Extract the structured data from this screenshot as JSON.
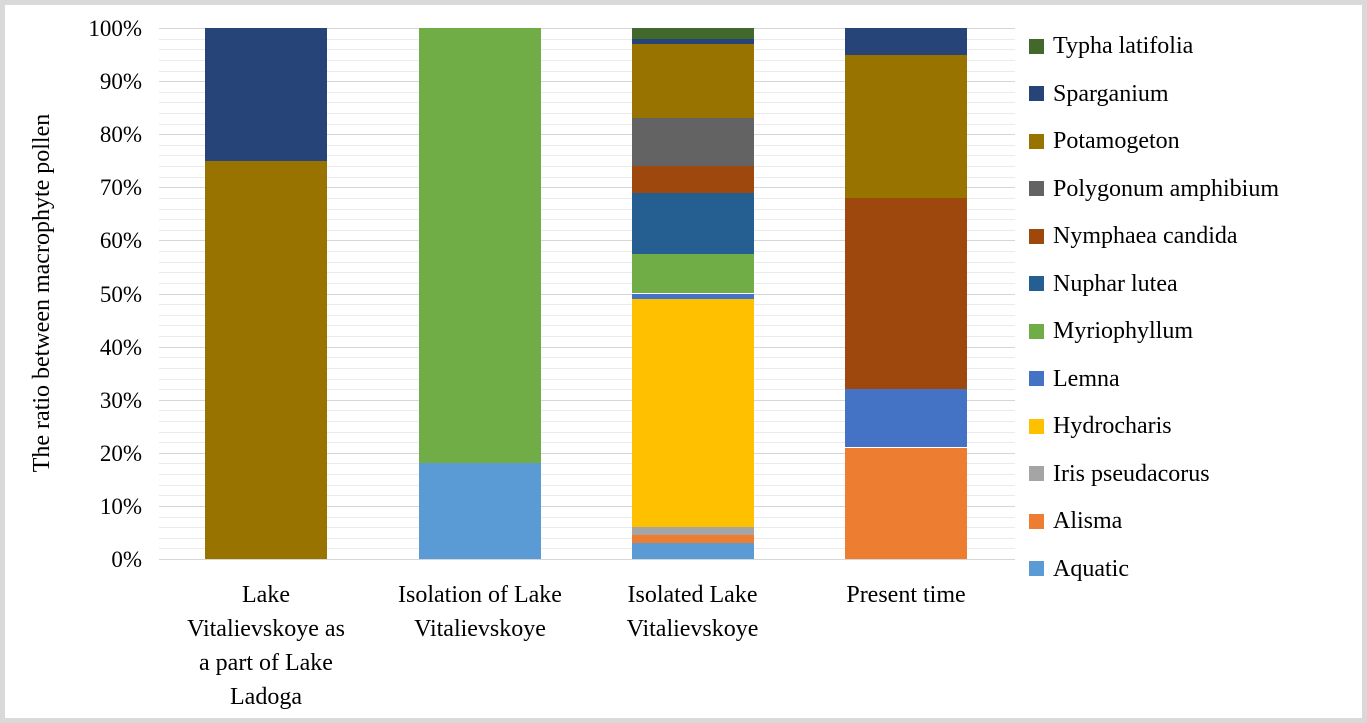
{
  "chart_data": {
    "type": "bar",
    "variant": "stacked-100-percent",
    "title": "",
    "xlabel": "",
    "ylabel": "The ratio between macrophyte pollen",
    "ylim": [
      0,
      100
    ],
    "ytick_step_major": 10,
    "ytick_step_minor": 2,
    "grid": "major and minor horizontal gridlines on",
    "legend_position": "right",
    "categories": [
      "Lake\nVitalievskoye as\na part of Lake\nLadoga",
      "Isolation of Lake\nVitalievskoye",
      "Isolated Lake\nVitalievskoye",
      "Present time"
    ],
    "yticks": [
      {
        "value": 0,
        "label": "0%"
      },
      {
        "value": 10,
        "label": "10%"
      },
      {
        "value": 20,
        "label": "20%"
      },
      {
        "value": 30,
        "label": "30%"
      },
      {
        "value": 40,
        "label": "40%"
      },
      {
        "value": 50,
        "label": "50%"
      },
      {
        "value": 60,
        "label": "60%"
      },
      {
        "value": 70,
        "label": "70%"
      },
      {
        "value": 80,
        "label": "80%"
      },
      {
        "value": 90,
        "label": "90%"
      },
      {
        "value": 100,
        "label": "100%"
      }
    ],
    "series": [
      {
        "name": "Aquatic",
        "color": "#5B9BD5",
        "values": [
          0,
          18,
          3,
          0
        ]
      },
      {
        "name": "Alisma",
        "color": "#ED7D31",
        "values": [
          0,
          0,
          1.5,
          21
        ]
      },
      {
        "name": "Iris pseudacorus",
        "color": "#A5A5A5",
        "values": [
          0,
          0,
          1.5,
          0
        ]
      },
      {
        "name": "Hydrocharis",
        "color": "#FFC000",
        "values": [
          0,
          0,
          43,
          0
        ]
      },
      {
        "name": "Lemna",
        "color": "#4472C4",
        "values": [
          0,
          0,
          1,
          11
        ]
      },
      {
        "name": "Myriophyllum",
        "color": "#70AD47",
        "values": [
          0,
          82,
          7.5,
          0
        ]
      },
      {
        "name": "Nuphar lutea",
        "color": "#255E91",
        "values": [
          0,
          0,
          11.5,
          0
        ]
      },
      {
        "name": "Nymphaea candida",
        "color": "#9E480E",
        "values": [
          0,
          0,
          5,
          36
        ]
      },
      {
        "name": "Polygonum amphibium",
        "color": "#636363",
        "values": [
          0,
          0,
          9,
          0
        ]
      },
      {
        "name": "Potamogeton",
        "color": "#997300",
        "values": [
          75,
          0,
          14,
          27
        ]
      },
      {
        "name": "Sparganium",
        "color": "#264478",
        "values": [
          25,
          0,
          1,
          5
        ]
      },
      {
        "name": "Typha latifolia",
        "color": "#43682B",
        "values": [
          0,
          0,
          2,
          0
        ]
      }
    ],
    "legend_items_top_to_bottom": [
      "Typha latifolia",
      "Sparganium",
      "Potamogeton",
      "Polygonum amphibium",
      "Nymphaea candida",
      "Nuphar lutea",
      "Myriophyllum",
      "Lemna",
      "Hydrocharis",
      "Iris pseudacorus",
      "Alisma",
      "Aquatic"
    ]
  }
}
